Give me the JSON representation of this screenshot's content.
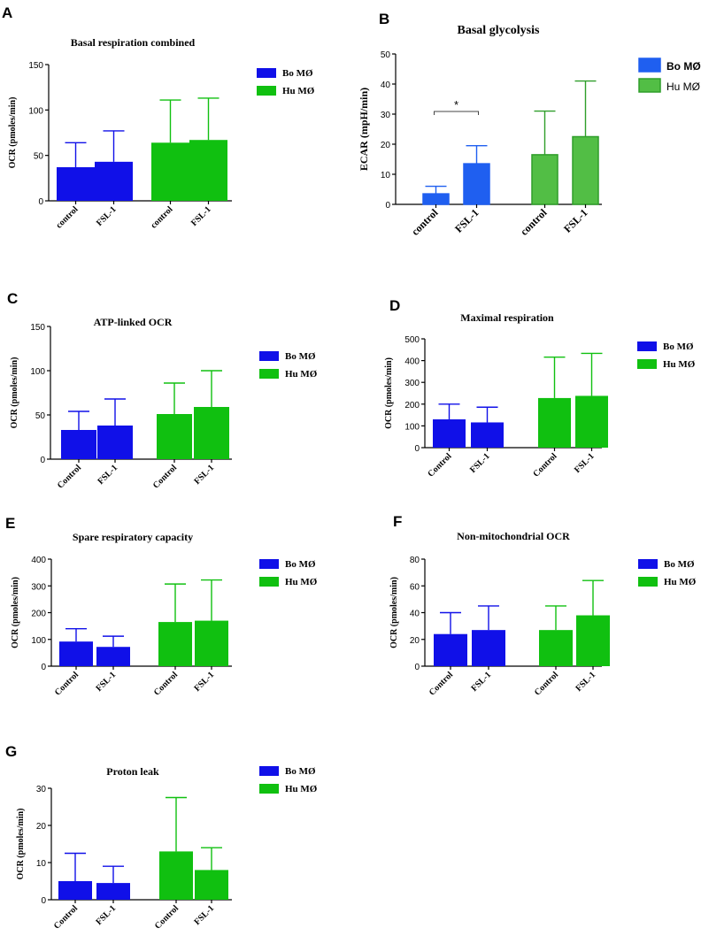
{
  "colors": {
    "bo": "#1010e8",
    "hu": "#10c010",
    "bo_b": "#1f5ff0",
    "hu_b": "#52be45",
    "hu_b_stroke": "#2f9e2a",
    "axis": "#000000"
  },
  "chart_data": [
    {
      "id": "A",
      "panel_letter": "A",
      "type": "bar",
      "title": "Basal respiration combined",
      "xlabel": "",
      "ylabel": "OCR (pmoles/min)",
      "ylim": [
        0,
        150
      ],
      "yticks": [
        0,
        50,
        100,
        150
      ],
      "categories": [
        "control",
        "FSL-1",
        "control",
        "FSL-1"
      ],
      "groups": [
        "Bo MØ",
        "Bo MØ",
        "Hu MØ",
        "Hu MØ"
      ],
      "values": [
        37,
        43,
        64,
        67
      ],
      "errors": [
        27,
        34,
        47,
        46
      ],
      "legend": [
        "Bo MØ",
        "Hu MØ"
      ],
      "legend_position": "top-right",
      "annotations": []
    },
    {
      "id": "B",
      "panel_letter": "B",
      "type": "bar",
      "title": "Basal glycolysis",
      "xlabel": "",
      "ylabel": "ECAR (mpH/min)",
      "ylim": [
        0,
        50
      ],
      "yticks": [
        0,
        10,
        20,
        30,
        40,
        50
      ],
      "categories": [
        "control",
        "FSL-1",
        "control",
        "FSL-1"
      ],
      "groups": [
        "Bo MØ",
        "Bo MØ",
        "Hu MØ",
        "Hu MØ"
      ],
      "values": [
        3.5,
        13.5,
        16.5,
        22.5
      ],
      "errors": [
        2.5,
        6,
        14.5,
        18.5
      ],
      "legend": [
        "Bo MØ",
        "Hu MØ"
      ],
      "legend_position": "top-right",
      "annotations": [
        "*"
      ]
    },
    {
      "id": "C",
      "panel_letter": "C",
      "type": "bar",
      "title": "ATP-linked OCR",
      "xlabel": "",
      "ylabel": "OCR (pmoles/min)",
      "ylim": [
        0,
        150
      ],
      "yticks": [
        0,
        50,
        100,
        150
      ],
      "categories": [
        "Control",
        "FSL-1",
        "Control",
        "FSL-1"
      ],
      "groups": [
        "Bo MØ",
        "Bo MØ",
        "Hu MØ",
        "Hu MØ"
      ],
      "values": [
        33,
        38,
        51,
        59
      ],
      "errors": [
        21,
        30,
        35,
        41
      ],
      "legend": [
        "Bo MØ",
        "Hu MØ"
      ],
      "legend_position": "top-right",
      "annotations": []
    },
    {
      "id": "D",
      "panel_letter": "D",
      "type": "bar",
      "title": "Maximal respiration",
      "xlabel": "",
      "ylabel": "OCR (pmoles/min)",
      "ylim": [
        0,
        500
      ],
      "yticks": [
        0,
        100,
        200,
        300,
        400,
        500
      ],
      "categories": [
        "Control",
        "FSL-1",
        "Control",
        "FSL-1"
      ],
      "groups": [
        "Bo MØ",
        "Bo MØ",
        "Hu MØ",
        "Hu MØ"
      ],
      "values": [
        130,
        116,
        228,
        238
      ],
      "errors": [
        70,
        70,
        188,
        195
      ],
      "legend": [
        "Bo MØ",
        "Hu MØ"
      ],
      "legend_position": "top-right",
      "annotations": []
    },
    {
      "id": "E",
      "panel_letter": "E",
      "type": "bar",
      "title": "Spare respiratory capacity",
      "xlabel": "",
      "ylabel": "OCR (pmoles/min)",
      "ylim": [
        0,
        400
      ],
      "yticks": [
        0,
        100,
        200,
        300,
        400
      ],
      "categories": [
        "Control",
        "FSL-1",
        "Control",
        "FSL-1"
      ],
      "groups": [
        "Bo MØ",
        "Bo MØ",
        "Hu MØ",
        "Hu MØ"
      ],
      "values": [
        92,
        72,
        165,
        170
      ],
      "errors": [
        48,
        40,
        142,
        152
      ],
      "legend": [
        "Bo MØ",
        "Hu MØ"
      ],
      "legend_position": "top-right",
      "annotations": []
    },
    {
      "id": "F",
      "panel_letter": "F",
      "type": "bar",
      "title": "Non-mitochondrial OCR",
      "xlabel": "",
      "ylabel": "OCR (pmoles/min)",
      "ylim": [
        0,
        80
      ],
      "yticks": [
        0,
        20,
        40,
        60,
        80
      ],
      "categories": [
        "Control",
        "FSL-1",
        "Control",
        "FSL-1"
      ],
      "groups": [
        "Bo MØ",
        "Bo MØ",
        "Hu MØ",
        "Hu MØ"
      ],
      "values": [
        24,
        27,
        27,
        38
      ],
      "errors": [
        16,
        18,
        18,
        26
      ],
      "legend": [
        "Bo MØ",
        "Hu MØ"
      ],
      "legend_position": "top-right",
      "annotations": []
    },
    {
      "id": "G",
      "panel_letter": "G",
      "type": "bar",
      "title": "Proton leak",
      "xlabel": "",
      "ylabel": "OCR (pmoles/min)",
      "ylim": [
        0,
        30
      ],
      "yticks": [
        0,
        10,
        20,
        30
      ],
      "categories": [
        "Control",
        "FSL-1",
        "Control",
        "FSL-1"
      ],
      "groups": [
        "Bo MØ",
        "Bo MØ",
        "Hu MØ",
        "Hu MØ"
      ],
      "values": [
        5,
        4.5,
        13,
        8
      ],
      "errors": [
        7.5,
        4.5,
        14.5,
        6
      ],
      "legend": [
        "Bo MØ",
        "Hu MØ"
      ],
      "legend_position": "top-right",
      "annotations": []
    }
  ]
}
